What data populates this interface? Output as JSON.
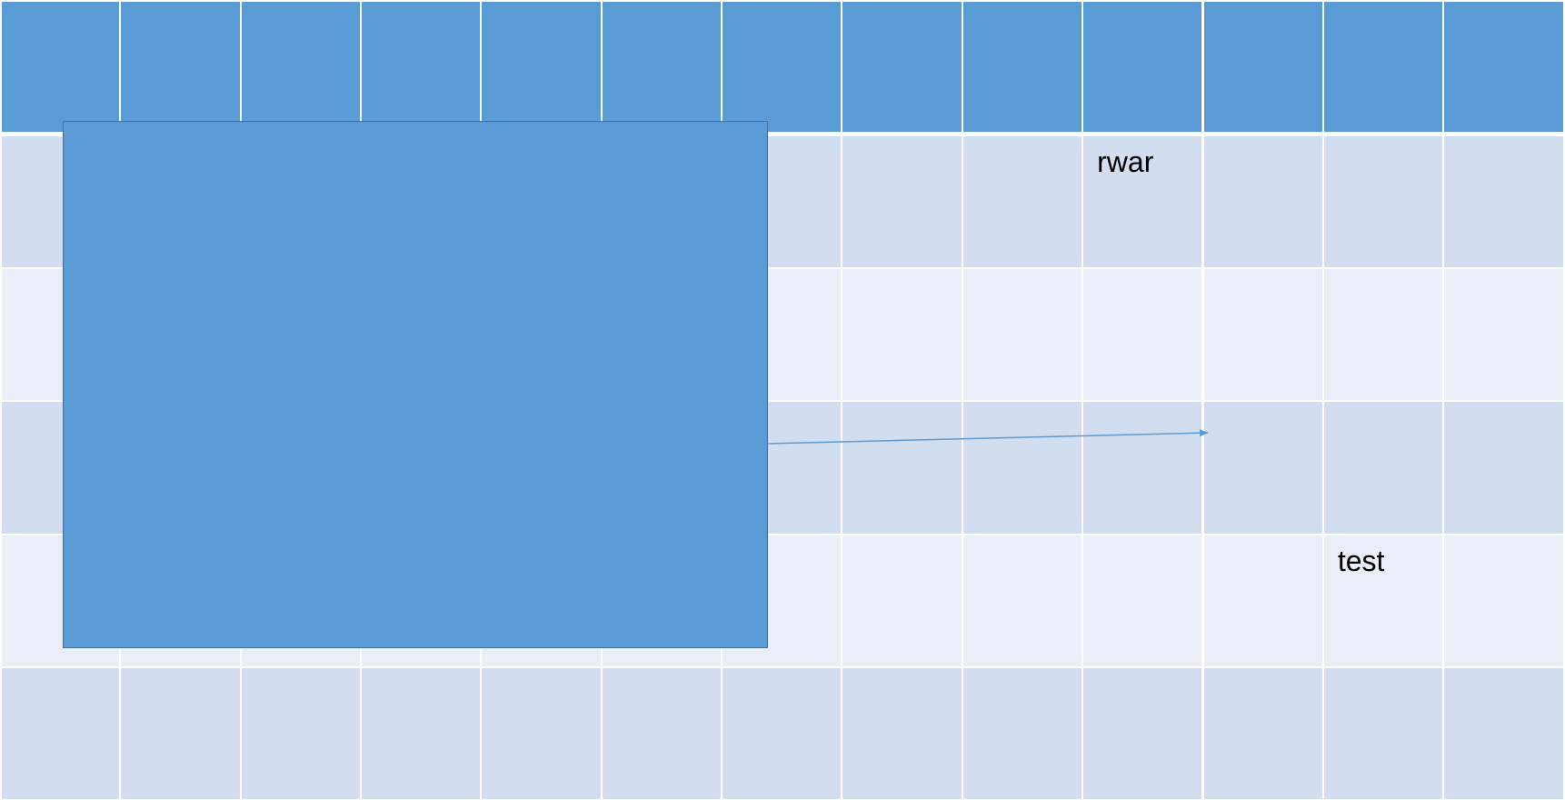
{
  "colors": {
    "header": "#5B9BD5",
    "band_dark": "#D2DEEF",
    "band_light": "#EAEFF7",
    "grid_line": "#FFFFFF",
    "shape_fill": "#5B9BD5",
    "shape_border": "#41719C",
    "connector": "#5B9BD5"
  },
  "table": {
    "columns": 13,
    "rows": 6,
    "cells": {
      "r1c9": "rwar",
      "r4c11": "test"
    }
  },
  "shapes": {
    "rectangle_icon": "rectangle-shape",
    "connector_icon": "arrow-connector-icon"
  }
}
